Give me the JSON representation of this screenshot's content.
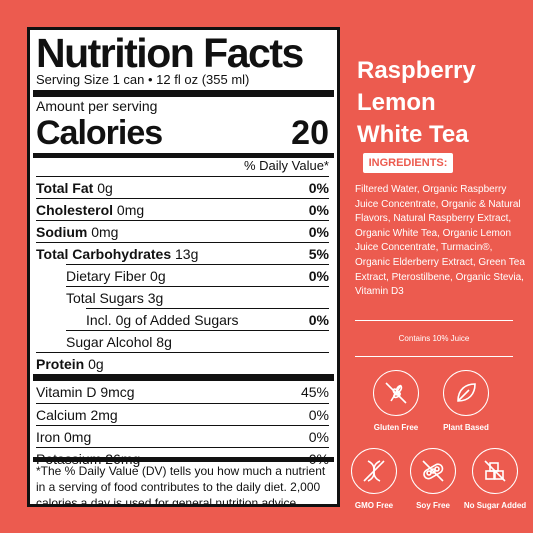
{
  "nutrition": {
    "title": "Nutrition Facts",
    "serving_size": "Serving Size 1 can • 12 fl oz (355 ml)",
    "amount_per_serving": "Amount per serving",
    "calories_label": "Calories",
    "calories_value": "20",
    "daily_value_header": "% Daily Value*",
    "rows": [
      {
        "name": "Total Fat",
        "amount": "0g",
        "dv": "0%"
      },
      {
        "name": "Cholesterol",
        "amount": "0mg",
        "dv": "0%"
      },
      {
        "name": "Sodium",
        "amount": "0mg",
        "dv": "0%"
      },
      {
        "name": "Total Carbohydrates",
        "amount": "13g",
        "dv": "5%"
      },
      {
        "name": "Dietary Fiber",
        "amount": "0g",
        "dv": "0%"
      },
      {
        "name": "Total Sugars",
        "amount": "3g",
        "dv": ""
      },
      {
        "name": "Incl. 0g of Added Sugars",
        "amount": "",
        "dv": "0%"
      },
      {
        "name": "Sugar Alcohol",
        "amount": "8g",
        "dv": ""
      },
      {
        "name": "Protein",
        "amount": "0g",
        "dv": ""
      },
      {
        "name": "Vitamin D",
        "amount": "9mcg",
        "dv": "45%"
      },
      {
        "name": "Calcium",
        "amount": "2mg",
        "dv": "0%"
      },
      {
        "name": "Iron",
        "amount": "0mg",
        "dv": "0%"
      },
      {
        "name": "Potassium",
        "amount": "26mg",
        "dv": "0%"
      }
    ],
    "footnote": "*The % Daily Value (DV) tells you how much a nutrient in a serving of food contributes to the daily diet. 2,000 calories a day is used for general nutrition advice."
  },
  "product": {
    "name_lines": [
      "Raspberry",
      "Lemon",
      "White Tea"
    ]
  },
  "ingredients": {
    "label": "INGREDIENTS:",
    "text": "Filtered Water, Organic Raspberry Juice Concentrate, Organic & Natural Flavors, Natural Raspberry Extract, Organic White Tea, Organic Lemon Juice Concentrate, Turmacin®, Organic Elderberry Extract, Green Tea Extract, Pterostilbene, Organic Stevia, Vitamin D3",
    "juice_note": "Contains 10% Juice"
  },
  "badges": [
    {
      "label": "Gluten Free",
      "icon": "wheat-crossed-icon"
    },
    {
      "label": "Plant Based",
      "icon": "leaf-icon"
    },
    {
      "label": "GMO Free",
      "icon": "dna-crossed-icon"
    },
    {
      "label": "Soy Free",
      "icon": "soy-crossed-icon"
    },
    {
      "label": "No Sugar Added",
      "icon": "sugar-cubes-crossed-icon"
    }
  ],
  "colors": {
    "background": "#ec5b4f",
    "panel": "#ffffff",
    "text": "#111111"
  }
}
